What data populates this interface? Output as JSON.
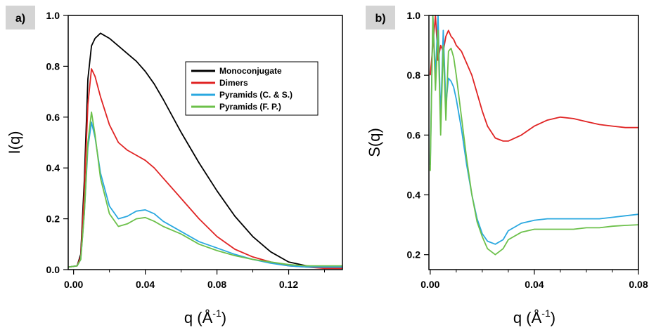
{
  "chart_data": [
    {
      "type": "line",
      "panel_label": "a)",
      "xlabel": "q (Å",
      "xlabel_sup": "-1",
      "xlabel_close": ")",
      "ylabel": "I(q)",
      "xlim": [
        -0.003,
        0.15
      ],
      "ylim": [
        0.0,
        1.0
      ],
      "xticks": [
        0.0,
        0.04,
        0.08,
        0.12
      ],
      "xtick_labels": [
        "0.00",
        "0.04",
        "0.08",
        "0.12"
      ],
      "xminor": [
        0.02,
        0.06,
        0.1,
        0.14
      ],
      "yticks": [
        0.0,
        0.2,
        0.4,
        0.6,
        0.8,
        1.0
      ],
      "ytick_labels": [
        "0.0",
        "0.2",
        "0.4",
        "0.6",
        "0.8",
        "1.0"
      ],
      "grid": false,
      "legend_position": "upper-right",
      "series": [
        {
          "name": "Monoconjugate",
          "color": "#000000",
          "x": [
            -0.003,
            0.002,
            0.004,
            0.006,
            0.008,
            0.01,
            0.012,
            0.015,
            0.02,
            0.025,
            0.03,
            0.035,
            0.04,
            0.045,
            0.05,
            0.06,
            0.07,
            0.08,
            0.09,
            0.1,
            0.11,
            0.12,
            0.13,
            0.14,
            0.15
          ],
          "y": [
            0.01,
            0.015,
            0.06,
            0.35,
            0.75,
            0.88,
            0.91,
            0.93,
            0.91,
            0.88,
            0.85,
            0.82,
            0.78,
            0.73,
            0.67,
            0.54,
            0.42,
            0.31,
            0.21,
            0.13,
            0.07,
            0.03,
            0.015,
            0.01,
            0.01
          ]
        },
        {
          "name": "Dimers",
          "color": "#e02424",
          "x": [
            -0.003,
            0.002,
            0.004,
            0.006,
            0.008,
            0.01,
            0.012,
            0.015,
            0.02,
            0.025,
            0.03,
            0.035,
            0.04,
            0.045,
            0.05,
            0.06,
            0.07,
            0.08,
            0.09,
            0.1,
            0.11,
            0.12,
            0.13,
            0.14,
            0.15
          ],
          "y": [
            0.01,
            0.015,
            0.05,
            0.3,
            0.65,
            0.79,
            0.76,
            0.68,
            0.57,
            0.5,
            0.47,
            0.45,
            0.43,
            0.4,
            0.36,
            0.28,
            0.2,
            0.13,
            0.08,
            0.05,
            0.03,
            0.015,
            0.01,
            0.005,
            0.005
          ]
        },
        {
          "name": "Pyramids (C. & S.)",
          "color": "#2aa8e0",
          "x": [
            -0.003,
            0.002,
            0.004,
            0.006,
            0.008,
            0.01,
            0.012,
            0.015,
            0.02,
            0.025,
            0.03,
            0.035,
            0.04,
            0.045,
            0.05,
            0.06,
            0.07,
            0.08,
            0.09,
            0.1,
            0.11,
            0.12,
            0.13,
            0.14,
            0.15
          ],
          "y": [
            0.01,
            0.015,
            0.04,
            0.22,
            0.48,
            0.58,
            0.52,
            0.38,
            0.25,
            0.2,
            0.21,
            0.23,
            0.235,
            0.22,
            0.19,
            0.15,
            0.11,
            0.085,
            0.06,
            0.04,
            0.025,
            0.015,
            0.01,
            0.01,
            0.01
          ]
        },
        {
          "name": "Pyramids (F. P.)",
          "color": "#6cc04a",
          "x": [
            -0.003,
            0.002,
            0.004,
            0.006,
            0.008,
            0.01,
            0.012,
            0.015,
            0.02,
            0.025,
            0.03,
            0.035,
            0.04,
            0.045,
            0.05,
            0.06,
            0.07,
            0.08,
            0.09,
            0.1,
            0.11,
            0.12,
            0.13,
            0.14,
            0.15
          ],
          "y": [
            0.01,
            0.015,
            0.04,
            0.22,
            0.5,
            0.62,
            0.53,
            0.36,
            0.22,
            0.17,
            0.18,
            0.2,
            0.205,
            0.19,
            0.17,
            0.14,
            0.1,
            0.075,
            0.055,
            0.04,
            0.03,
            0.02,
            0.015,
            0.015,
            0.015
          ]
        }
      ]
    },
    {
      "type": "line",
      "panel_label": "b)",
      "xlabel": "q (Å",
      "xlabel_sup": "-1",
      "xlabel_close": ")",
      "ylabel": "S(q)",
      "xlim": [
        -0.0005,
        0.08
      ],
      "ylim": [
        0.15,
        1.0
      ],
      "xticks": [
        0.0,
        0.04,
        0.08
      ],
      "xtick_labels": [
        "0.00",
        "0.04",
        "0.08"
      ],
      "xminor": [
        0.01,
        0.02,
        0.03,
        0.05,
        0.06,
        0.07
      ],
      "yticks": [
        0.2,
        0.4,
        0.6,
        0.8,
        1.0
      ],
      "ytick_labels": [
        "0.2",
        "0.4",
        "0.6",
        "0.8",
        "1.0"
      ],
      "grid": false,
      "series": [
        {
          "name": "Dimers",
          "color": "#e02424",
          "x": [
            0.0,
            0.001,
            0.002,
            0.003,
            0.004,
            0.005,
            0.006,
            0.007,
            0.008,
            0.009,
            0.01,
            0.012,
            0.014,
            0.016,
            0.018,
            0.02,
            0.022,
            0.025,
            0.028,
            0.03,
            0.035,
            0.04,
            0.045,
            0.05,
            0.055,
            0.06,
            0.065,
            0.07,
            0.075,
            0.08
          ],
          "y": [
            0.8,
            0.9,
            1.0,
            0.85,
            0.9,
            0.88,
            0.93,
            0.95,
            0.93,
            0.92,
            0.9,
            0.88,
            0.84,
            0.8,
            0.74,
            0.68,
            0.63,
            0.59,
            0.58,
            0.58,
            0.6,
            0.63,
            0.65,
            0.66,
            0.655,
            0.645,
            0.635,
            0.63,
            0.625,
            0.625
          ]
        },
        {
          "name": "Pyramids (C. & S.)",
          "color": "#2aa8e0",
          "x": [
            0.0,
            0.001,
            0.002,
            0.003,
            0.004,
            0.005,
            0.006,
            0.007,
            0.008,
            0.009,
            0.01,
            0.012,
            0.014,
            0.016,
            0.018,
            0.02,
            0.022,
            0.025,
            0.028,
            0.03,
            0.035,
            0.04,
            0.045,
            0.05,
            0.055,
            0.06,
            0.065,
            0.07,
            0.075,
            0.08
          ],
          "y": [
            0.5,
            1.0,
            0.8,
            1.0,
            0.65,
            0.95,
            0.7,
            0.79,
            0.78,
            0.76,
            0.72,
            0.62,
            0.5,
            0.4,
            0.32,
            0.27,
            0.245,
            0.235,
            0.25,
            0.28,
            0.305,
            0.315,
            0.32,
            0.32,
            0.32,
            0.32,
            0.32,
            0.325,
            0.33,
            0.335
          ]
        },
        {
          "name": "Pyramids (F. P.)",
          "color": "#6cc04a",
          "x": [
            0.0,
            0.001,
            0.002,
            0.003,
            0.004,
            0.005,
            0.006,
            0.007,
            0.008,
            0.009,
            0.01,
            0.012,
            0.014,
            0.016,
            0.018,
            0.02,
            0.022,
            0.025,
            0.028,
            0.03,
            0.035,
            0.04,
            0.045,
            0.05,
            0.055,
            0.06,
            0.065,
            0.07,
            0.075,
            0.08
          ],
          "y": [
            0.48,
            1.0,
            0.75,
            0.95,
            0.6,
            0.9,
            0.65,
            0.88,
            0.89,
            0.86,
            0.8,
            0.66,
            0.52,
            0.4,
            0.31,
            0.26,
            0.22,
            0.2,
            0.22,
            0.25,
            0.275,
            0.285,
            0.285,
            0.285,
            0.285,
            0.29,
            0.29,
            0.295,
            0.298,
            0.3
          ]
        }
      ]
    }
  ]
}
